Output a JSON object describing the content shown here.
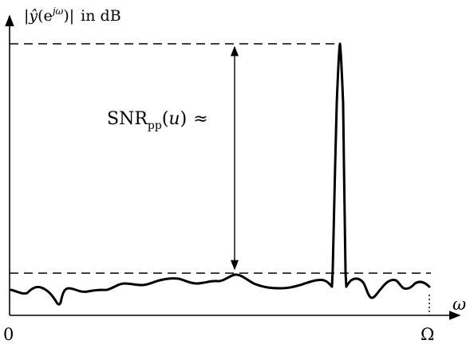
{
  "figure": {
    "y_axis_label": {
      "open_bar": "|",
      "y_hat": "ŷ",
      "paren_open": "(e",
      "superscript_j": "j",
      "superscript_omega": "ω",
      "paren_close_bar": ")|",
      "units": "in dB"
    },
    "x_axis_label": "ω",
    "origin_label": "0",
    "x_end_label": "Ω",
    "annotation": {
      "snr": "SNR",
      "snr_subscript": "pp",
      "paren_open": "(",
      "variable": "u",
      "paren_close": ")",
      "approx": "≈"
    }
  },
  "colors": {
    "ink": "#000000",
    "background": "#ffffff"
  }
}
